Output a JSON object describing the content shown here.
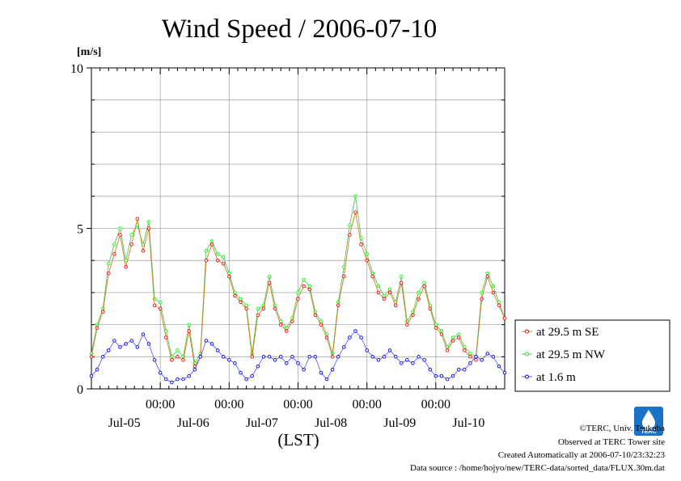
{
  "chart_data": {
    "type": "line",
    "title": "Wind Speed / 2006-07-10",
    "ylabel": "[m/s]",
    "xlabel": "(LST)",
    "ylim": [
      0,
      10
    ],
    "yticks": [
      "0",
      "5",
      "10"
    ],
    "x_time_labels": [
      "00:00",
      "00:00",
      "00:00",
      "00:00",
      "00:00"
    ],
    "x_date_labels": [
      "Jul-05",
      "Jul-06",
      "Jul-07",
      "Jul-08",
      "Jul-09",
      "Jul-10"
    ],
    "grid": true,
    "legend_position": "right",
    "series": [
      {
        "name": "at 29.5 m SE",
        "color": "#ff0000",
        "x": [
          0,
          2,
          4,
          6,
          8,
          10,
          12,
          14,
          16,
          18,
          20,
          22,
          24,
          26,
          28,
          30,
          32,
          34,
          36,
          38,
          40,
          42,
          44,
          46,
          48,
          50,
          52,
          54,
          56,
          58,
          60,
          62,
          64,
          66,
          68,
          70,
          72,
          74,
          76,
          78,
          80,
          82,
          84,
          86,
          88,
          90,
          92,
          94,
          96,
          98,
          100,
          102,
          104,
          106,
          108,
          110,
          112,
          114,
          116,
          118,
          120,
          122,
          124,
          126,
          128,
          130,
          132,
          134,
          136,
          138,
          140,
          142,
          144
        ],
        "values": [
          1.0,
          1.9,
          2.4,
          3.6,
          4.2,
          4.8,
          3.8,
          4.5,
          5.3,
          4.3,
          5.0,
          2.6,
          2.5,
          1.6,
          0.9,
          1.0,
          0.9,
          1.8,
          0.7,
          1.0,
          4.0,
          4.5,
          4.0,
          3.9,
          3.5,
          2.9,
          2.7,
          2.5,
          1.0,
          2.3,
          2.5,
          3.3,
          2.5,
          2.0,
          1.8,
          2.1,
          2.8,
          3.2,
          3.1,
          2.3,
          2.0,
          1.6,
          1.0,
          2.6,
          3.5,
          4.8,
          5.5,
          4.5,
          4.0,
          3.5,
          3.0,
          2.8,
          3.0,
          2.6,
          3.3,
          2.0,
          2.3,
          2.8,
          3.2,
          2.5,
          1.9,
          1.7,
          1.2,
          1.5,
          1.6,
          1.2,
          1.0,
          0.9,
          2.8,
          3.5,
          3.0,
          2.6,
          2.2
        ],
        "marker_style": "circle"
      },
      {
        "name": "at 29.5 m NW",
        "color": "#00ff00",
        "x": [
          0,
          2,
          4,
          6,
          8,
          10,
          12,
          14,
          16,
          18,
          20,
          22,
          24,
          26,
          28,
          30,
          32,
          34,
          36,
          38,
          40,
          42,
          44,
          46,
          48,
          50,
          52,
          54,
          56,
          58,
          60,
          62,
          64,
          66,
          68,
          70,
          72,
          74,
          76,
          78,
          80,
          82,
          84,
          86,
          88,
          90,
          92,
          94,
          96,
          98,
          100,
          102,
          104,
          106,
          108,
          110,
          112,
          114,
          116,
          118,
          120,
          122,
          124,
          126,
          128,
          130,
          132,
          134,
          136,
          138,
          140,
          142,
          144
        ],
        "values": [
          1.1,
          2.0,
          2.5,
          3.9,
          4.5,
          5.0,
          4.0,
          4.8,
          5.1,
          4.5,
          5.2,
          2.8,
          2.7,
          1.8,
          1.0,
          1.2,
          1.0,
          2.0,
          0.8,
          1.1,
          4.3,
          4.6,
          4.2,
          4.1,
          3.6,
          3.0,
          2.8,
          2.6,
          1.1,
          2.5,
          2.6,
          3.5,
          2.6,
          2.1,
          1.9,
          2.2,
          3.0,
          3.4,
          3.2,
          2.4,
          2.1,
          1.7,
          1.1,
          2.7,
          3.8,
          5.1,
          6.0,
          4.7,
          4.2,
          3.6,
          3.2,
          2.9,
          3.1,
          2.7,
          3.5,
          2.1,
          2.4,
          3.0,
          3.3,
          2.6,
          2.0,
          1.8,
          1.3,
          1.6,
          1.7,
          1.3,
          1.1,
          1.0,
          3.0,
          3.6,
          3.2,
          2.7,
          2.2
        ],
        "marker_style": "circle"
      },
      {
        "name": "at 1.6 m",
        "color": "#0000ff",
        "x": [
          0,
          2,
          4,
          6,
          8,
          10,
          12,
          14,
          16,
          18,
          20,
          22,
          24,
          26,
          28,
          30,
          32,
          34,
          36,
          38,
          40,
          42,
          44,
          46,
          48,
          50,
          52,
          54,
          56,
          58,
          60,
          62,
          64,
          66,
          68,
          70,
          72,
          74,
          76,
          78,
          80,
          82,
          84,
          86,
          88,
          90,
          92,
          94,
          96,
          98,
          100,
          102,
          104,
          106,
          108,
          110,
          112,
          114,
          116,
          118,
          120,
          122,
          124,
          126,
          128,
          130,
          132,
          134,
          136,
          138,
          140,
          142,
          144
        ],
        "values": [
          0.4,
          0.6,
          1.0,
          1.2,
          1.5,
          1.3,
          1.4,
          1.5,
          1.3,
          1.7,
          1.4,
          0.9,
          0.5,
          0.3,
          0.2,
          0.3,
          0.3,
          0.4,
          0.6,
          1.0,
          1.5,
          1.4,
          1.2,
          1.0,
          0.9,
          0.8,
          0.5,
          0.3,
          0.4,
          0.7,
          1.0,
          1.0,
          0.9,
          1.0,
          0.8,
          1.0,
          0.8,
          0.6,
          1.0,
          1.0,
          0.5,
          0.3,
          0.6,
          1.0,
          1.3,
          1.6,
          1.8,
          1.6,
          1.2,
          1.0,
          0.9,
          1.0,
          1.2,
          1.0,
          0.8,
          0.9,
          0.8,
          1.0,
          0.9,
          0.6,
          0.4,
          0.4,
          0.3,
          0.4,
          0.6,
          0.6,
          0.8,
          1.0,
          0.9,
          1.1,
          1.0,
          0.7,
          0.5
        ],
        "marker_style": "circle"
      }
    ]
  },
  "footer": {
    "copyright": "©TERC, Univ. Tsukuba",
    "observed": "Observed at TERC Tower site",
    "created": "Created Automatically at 2006-07-10/23:32:23",
    "datasource": "Data source : /home/hojyo/new/TERC-data/sorted_data/FLUX.30m.dat",
    "logo_text": "TERC"
  }
}
